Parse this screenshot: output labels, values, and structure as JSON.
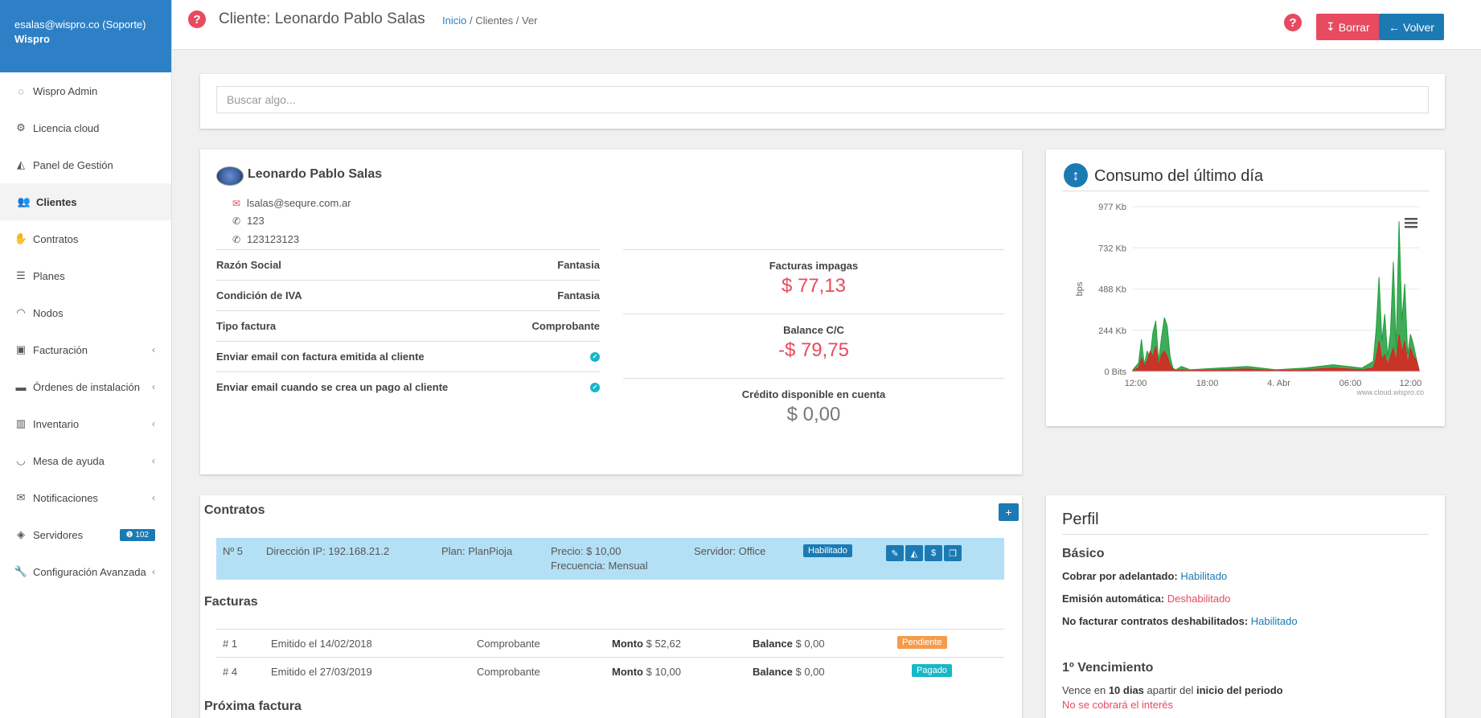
{
  "sidebar": {
    "user": "esalas@wispro.co (Soporte)",
    "org": "Wispro",
    "items": [
      {
        "label": "Wispro Admin",
        "icon": "circle-notch-icon"
      },
      {
        "label": "Licencia cloud",
        "icon": "cogs-icon"
      },
      {
        "label": "Panel de Gestión",
        "icon": "area-chart-icon"
      },
      {
        "label": "Clientes",
        "icon": "users-icon"
      },
      {
        "label": "Contratos",
        "icon": "handshake-icon"
      },
      {
        "label": "Planes",
        "icon": "list-icon"
      },
      {
        "label": "Nodos",
        "icon": "wifi-icon"
      },
      {
        "label": "Facturación",
        "icon": "money-icon"
      },
      {
        "label": "Órdenes de instalación",
        "icon": "truck-icon"
      },
      {
        "label": "Inventario",
        "icon": "barcode-icon"
      },
      {
        "label": "Mesa de ayuda",
        "icon": "headset-icon"
      },
      {
        "label": "Notificaciones",
        "icon": "envelope-icon"
      },
      {
        "label": "Servidores",
        "icon": "cube-icon",
        "badge": "102"
      },
      {
        "label": "Configuración Avanzada",
        "icon": "wrench-icon"
      }
    ]
  },
  "header": {
    "title": "Cliente: Leonardo Pablo Salas",
    "breadcrumb": {
      "home": "Inicio",
      "rest": " / Clientes / Ver"
    },
    "delete_label": "Borrar",
    "back_label": "Volver"
  },
  "search": {
    "placeholder": "Buscar algo..."
  },
  "client": {
    "name": "Leonardo Pablo Salas",
    "email": "lsalas@sequre.com.ar",
    "phone1": "123",
    "phone2": "123123123",
    "attributes": [
      {
        "label": "Razón Social",
        "value": "Fantasia"
      },
      {
        "label": "Condición de IVA",
        "value": "Fantasia"
      },
      {
        "label": "Tipo factura",
        "value": "Comprobante"
      },
      {
        "label": "Enviar email con factura emitida al cliente",
        "value": ""
      },
      {
        "label": "Enviar email cuando se crea un pago al cliente",
        "value": ""
      }
    ],
    "unpaid_label": "Facturas impagas",
    "unpaid_value": "$ 77,13",
    "balance_label": "Balance C/C",
    "balance_value": "-$ 79,75",
    "credit_label": "Crédito disponible en cuenta",
    "credit_value": "$ 0,00"
  },
  "consumption": {
    "title": "Consumo del último día",
    "credit": "www.cloud.wispro.co"
  },
  "chart_data": {
    "type": "area",
    "title": "",
    "ylabel": "bps",
    "yticks": [
      "0 Bits",
      "244 Kb",
      "488 Kb",
      "732 Kb",
      "977 Kb"
    ],
    "ylim": [
      0,
      977
    ],
    "xticks": [
      "12:00",
      "18:00",
      "4. Abr",
      "06:00",
      "12:00"
    ],
    "x": [
      0,
      0.02,
      0.03,
      0.04,
      0.05,
      0.06,
      0.07,
      0.08,
      0.09,
      0.1,
      0.11,
      0.12,
      0.13,
      0.14,
      0.15,
      0.17,
      0.2,
      0.3,
      0.4,
      0.5,
      0.6,
      0.7,
      0.8,
      0.84,
      0.85,
      0.86,
      0.87,
      0.88,
      0.89,
      0.9,
      0.91,
      0.92,
      0.93,
      0.94,
      0.95,
      0.96,
      0.97,
      0.98,
      0.99,
      1.0
    ],
    "series": [
      {
        "color": "#1e9e3c",
        "values": [
          10,
          50,
          190,
          40,
          120,
          80,
          230,
          300,
          60,
          200,
          320,
          270,
          90,
          20,
          10,
          30,
          10,
          20,
          30,
          10,
          20,
          40,
          20,
          60,
          250,
          560,
          180,
          340,
          90,
          230,
          650,
          130,
          890,
          300,
          520,
          100,
          220,
          160,
          80,
          10
        ]
      },
      {
        "color": "#e02020",
        "values": [
          5,
          20,
          80,
          30,
          60,
          120,
          90,
          150,
          30,
          100,
          120,
          90,
          40,
          10,
          5,
          10,
          5,
          10,
          15,
          5,
          10,
          20,
          10,
          20,
          80,
          180,
          70,
          100,
          40,
          90,
          140,
          60,
          220,
          110,
          180,
          40,
          140,
          90,
          70,
          5
        ]
      }
    ]
  },
  "contracts": {
    "title": "Contratos",
    "add_label": "+",
    "row": {
      "num": "Nº 5",
      "ip": "Dirección IP: 192.168.21.2",
      "plan": "Plan: PlanPioja",
      "price": "Precio: $ 10,00",
      "freq": "Frecuencia: Mensual",
      "server": "Servidor: Office",
      "status": "Habilitado"
    }
  },
  "invoices": {
    "title": "Facturas",
    "amount_label": "Monto",
    "balance_label": "Balance",
    "rows": [
      {
        "num": "# 1",
        "issued": "Emitido el 14/02/2018",
        "type": "Comprobante",
        "amount": " $ 52,62",
        "balance": " $ 0,00",
        "status": "Pendiente"
      },
      {
        "num": "# 4",
        "issued": "Emitido el 27/03/2019",
        "type": "Comprobante",
        "amount": " $ 10,00",
        "balance": " $ 0,00",
        "status": "Pagado"
      }
    ]
  },
  "next_invoice": {
    "title": "Próxima factura"
  },
  "profile": {
    "title": "Perfil",
    "basic_title": "Básico",
    "advance_label": "Cobrar por adelantado:",
    "advance_value": "Habilitado",
    "auto_label": "Emisión automática:",
    "auto_value": "Deshabilitado",
    "nobill_label": "No facturar contratos deshabilitados:",
    "nobill_value": "Habilitado",
    "due_title": "1º Vencimiento",
    "due_pre": "Vence en ",
    "due_days": "10 dias",
    "due_mid": " apartir del ",
    "due_end": "inicio del periodo",
    "no_interest": "No se cobrará el interés"
  }
}
